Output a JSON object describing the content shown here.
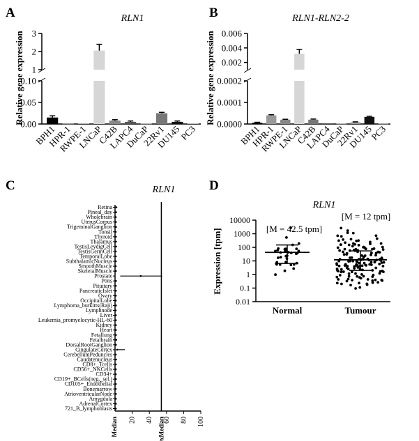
{
  "chart_data": [
    {
      "panel": "A",
      "type": "bar",
      "title": "RLN1",
      "ylabel": "Relative gene expression",
      "categories": [
        "BPH1",
        "HPR-1",
        "RWPE-1",
        "LNCaP",
        "C42B",
        "LAPC4",
        "DuCaP",
        "22Rv1",
        "DU145",
        "PC3"
      ],
      "values": [
        0.015,
        0.001,
        0.0015,
        2.05,
        0.008,
        0.005,
        0.001,
        0.025,
        0.005,
        0.0015
      ],
      "errors": [
        0.004,
        0.0005,
        0.0005,
        0.35,
        0.002,
        0.002,
        0.0005,
        0.002,
        0.002,
        0.0005
      ],
      "fills": [
        "#000000",
        "#999999",
        "#aaaaaa",
        "#d6d6d6",
        "#888888",
        "#555555",
        "#cccccc",
        "#777777",
        "#111111",
        "#bbbbbb"
      ],
      "axis_break": {
        "lower": [
          0,
          0.1
        ],
        "upper": [
          1,
          3
        ]
      },
      "lower_ticks": [
        "0.00",
        "0.05",
        "0.10"
      ],
      "upper_ticks": [
        "1",
        "2",
        "3"
      ]
    },
    {
      "panel": "B",
      "type": "bar",
      "title": "RLN1-RLN2-2",
      "ylabel": "Relative gene expression",
      "categories": [
        "BPH1",
        "HPR-1",
        "RWPE-1",
        "LNCaP",
        "C42B",
        "LAPC4",
        "DuCaP",
        "22Rv1",
        "DU145",
        "PC3"
      ],
      "values": [
        6e-06,
        4e-05,
        2e-05,
        0.0032,
        2e-05,
        3e-06,
        2e-06,
        8e-06,
        3.3e-05,
        2e-06
      ],
      "errors": [
        2e-06,
        3e-06,
        2e-06,
        0.0006,
        3e-06,
        1e-06,
        1e-06,
        2e-06,
        3e-06,
        1e-06
      ],
      "fills": [
        "#000000",
        "#999999",
        "#888888",
        "#d6d6d6",
        "#777777",
        "#555555",
        "#cccccc",
        "#999999",
        "#111111",
        "#bbbbbb"
      ],
      "axis_break": {
        "lower": [
          0,
          0.0002
        ],
        "upper": [
          0.001,
          0.006
        ]
      },
      "lower_ticks": [
        "0.0000",
        "0.0001",
        "0.0002"
      ],
      "upper_ticks": [
        "0.002",
        "0.004",
        "0.006"
      ]
    },
    {
      "panel": "C",
      "type": "scatter",
      "title": "RLN1",
      "categories": [
        "Retina",
        "Pineal_day",
        "Wholebrain",
        "UterusCorpus",
        "TrigeminalGanglion",
        "Tonsil",
        "Thyroid",
        "Thalamus",
        "TestisLeydigCell",
        "TestisGermCell",
        "TemporalLobe",
        "SubthalamicNucleus",
        "SmoothMuscle",
        "SkeletalMuscle",
        "Prostate",
        "Pons",
        "Pituitary",
        "PancreaticIslet",
        "Ovary",
        "OccipitalLobe",
        "Lymphoma_burkitts(Raji)",
        "Lymphnode",
        "Liver",
        "Leukemia_promyelocytic-HL-60",
        "Kidney",
        "Heart",
        "Fetallung",
        "Fetalbrain",
        "DorsalRootGanglion",
        "CingulateCortex",
        "CerebellumPeduncles",
        "Caudatenucleus",
        "CD8+_Tcells",
        "CD56+_NKCells",
        "CD34+",
        "CD19+_BCells(neg._sel.)",
        "CD105+_Endothelial",
        "Bonemarrow",
        "AtrioventricularNode",
        "Amygdala",
        "AdrenalCortex",
        "721_B_lymphoblasts"
      ],
      "values": [
        1.6,
        1.2,
        0.9,
        1.0,
        1.1,
        0.8,
        1.0,
        1.1,
        1.3,
        0.9,
        1.0,
        1.0,
        0.8,
        1.0,
        30,
        1.1,
        0.9,
        1.0,
        1.0,
        0.9,
        1.1,
        0.8,
        1.0,
        1.0,
        1.0,
        1.0,
        1.0,
        1.4,
        1.0,
        2.5,
        0.9,
        1.2,
        1.0,
        0.9,
        0.9,
        1.0,
        1.0,
        0.9,
        1.0,
        1.0,
        1.0,
        0.9
      ],
      "err_low": [
        0.3,
        0.2,
        0.2,
        0.2,
        0.2,
        0.2,
        0.2,
        0.2,
        0.2,
        0.2,
        0.2,
        0.2,
        0.2,
        0.2,
        24,
        0.2,
        0.2,
        0.2,
        0.2,
        0.2,
        0.2,
        0.2,
        0.2,
        0.2,
        0.2,
        0.2,
        0.2,
        0.3,
        0.2,
        1.5,
        0.2,
        0.2,
        0.2,
        0.2,
        0.2,
        0.2,
        0.2,
        0.2,
        0.2,
        0.2,
        0.2,
        0.2
      ],
      "err_high": [
        0.4,
        0.3,
        0.2,
        0.2,
        0.2,
        0.2,
        0.2,
        0.2,
        0.4,
        0.2,
        0.2,
        0.2,
        0.2,
        0.2,
        25,
        0.2,
        0.2,
        0.2,
        0.2,
        0.2,
        0.2,
        0.2,
        0.2,
        0.2,
        0.2,
        0.2,
        0.2,
        0.4,
        0.2,
        9,
        0.2,
        0.2,
        0.2,
        0.2,
        0.2,
        0.2,
        0.2,
        0.2,
        0.2,
        0.2,
        0.2,
        0.2
      ],
      "xlim": [
        0,
        100
      ],
      "x_ticks": [
        "20",
        "40",
        "60",
        "80",
        "100"
      ],
      "x_tick_values": [
        20,
        40,
        60,
        80,
        100
      ],
      "median_label": "Median",
      "ten_x_label": "10xMedian",
      "ten_x_value": 54
    },
    {
      "panel": "D",
      "type": "scatter",
      "title": "RLN1",
      "ylabel": "Expression [tpm]",
      "scale": "log",
      "ylim": [
        0.01,
        10000
      ],
      "y_ticks": [
        "0.01",
        "0.1",
        "1",
        "10",
        "100",
        "1000",
        "10000"
      ],
      "groups": [
        {
          "name": "Normal",
          "median": 42.5,
          "q1": 6.5,
          "q3": 150,
          "annotation": "[M = 42.5 tpm]"
        },
        {
          "name": "Tumour",
          "median": 12,
          "q1": 2,
          "q3": 55,
          "annotation": "[M = 12 tpm]"
        }
      ]
    }
  ],
  "panel_labels": [
    "A",
    "B",
    "C",
    "D"
  ]
}
